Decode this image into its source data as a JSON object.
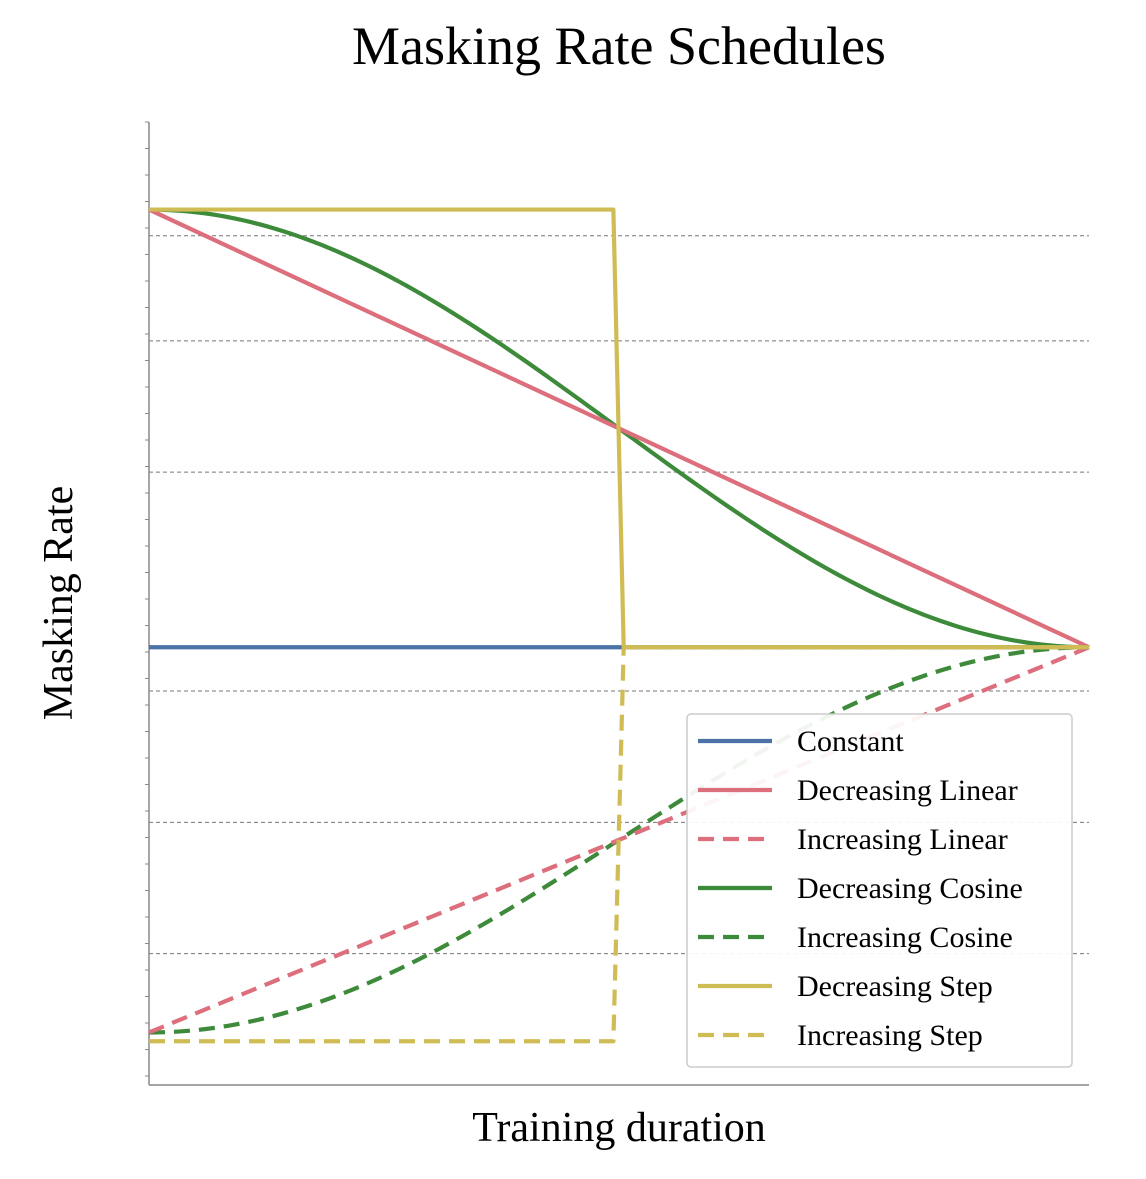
{
  "chart_data": {
    "type": "line",
    "title": "Masking Rate Schedules",
    "xlabel": "Training duration",
    "ylabel": "Masking Rate",
    "xlim": [
      0,
      1
    ],
    "ylim": [
      0,
      1.1
    ],
    "grid": "y dashed",
    "legend_position": "bottom-right",
    "series": [
      {
        "name": "Constant",
        "style": "solid",
        "color": "#4c72a8",
        "kind": "constant",
        "values": {
          "x": [
            0,
            1
          ],
          "y": [
            0.5,
            0.5
          ]
        }
      },
      {
        "name": "Decreasing Linear",
        "style": "solid",
        "color": "#dd6e7c",
        "kind": "linear",
        "values": {
          "x": [
            0,
            1
          ],
          "y": [
            1.0,
            0.5
          ]
        }
      },
      {
        "name": "Increasing Linear",
        "style": "dashed",
        "color": "#dd6e7c",
        "kind": "linear",
        "values": {
          "x": [
            0,
            1
          ],
          "y": [
            0.06,
            0.5
          ]
        }
      },
      {
        "name": "Decreasing Cosine",
        "style": "solid",
        "color": "#3d8a3a",
        "kind": "cosine",
        "values": {
          "x": [
            0,
            1
          ],
          "y": [
            1.0,
            0.5
          ]
        }
      },
      {
        "name": "Increasing Cosine",
        "style": "dashed",
        "color": "#3d8a3a",
        "kind": "cosine",
        "values": {
          "x": [
            0,
            1
          ],
          "y": [
            0.06,
            0.5
          ]
        }
      },
      {
        "name": "Decreasing Step",
        "style": "solid",
        "color": "#cfbc55",
        "kind": "step",
        "step_x": [
          0.494,
          0.505
        ],
        "values": {
          "x": [
            0,
            1
          ],
          "y": [
            1.0,
            0.5
          ]
        }
      },
      {
        "name": "Increasing Step",
        "style": "dashed",
        "color": "#cfbc55",
        "kind": "step",
        "step_x": [
          0.494,
          0.505
        ],
        "values": {
          "x": [
            0,
            1
          ],
          "y": [
            0.05,
            0.5
          ]
        }
      }
    ]
  }
}
